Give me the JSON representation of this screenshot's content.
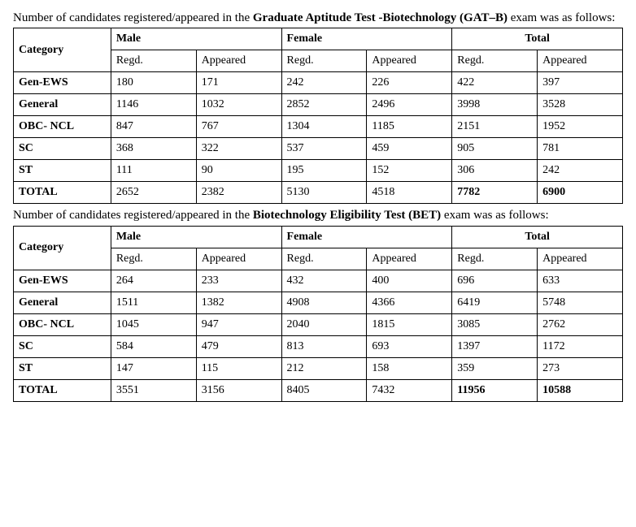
{
  "gatb": {
    "intro_prefix": "Number of candidates registered/appeared in the ",
    "intro_bold": "Graduate Aptitude Test -Biotechnology (GAT–B)",
    "intro_suffix": " exam was as follows:",
    "headers": {
      "category": "Category",
      "male": "Male",
      "female": "Female",
      "total": "Total",
      "regd": "Regd.",
      "appeared": "Appeared"
    },
    "rows": [
      {
        "label": "Gen-EWS",
        "mr": "180",
        "ma": "171",
        "fr": "242",
        "fa": "226",
        "tr": "422",
        "ta": "397"
      },
      {
        "label": "General",
        "mr": "1146",
        "ma": "1032",
        "fr": "2852",
        "fa": "2496",
        "tr": "3998",
        "ta": "3528"
      },
      {
        "label": "OBC- NCL",
        "mr": "847",
        "ma": "767",
        "fr": "1304",
        "fa": "1185",
        "tr": "2151",
        "ta": "1952"
      },
      {
        "label": "SC",
        "mr": "368",
        "ma": "322",
        "fr": "537",
        "fa": "459",
        "tr": "905",
        "ta": "781"
      },
      {
        "label": "ST",
        "mr": "111",
        "ma": "90",
        "fr": "195",
        "fa": "152",
        "tr": "306",
        "ta": "242"
      },
      {
        "label": "TOTAL",
        "mr": "2652",
        "ma": "2382",
        "fr": "5130",
        "fa": "4518",
        "tr": "7782",
        "ta": "6900",
        "bold_totals": true
      }
    ]
  },
  "bet": {
    "intro_prefix": "Number of candidates registered/appeared in the ",
    "intro_bold": "Biotechnology Eligibility Test (BET)",
    "intro_suffix": " exam was as follows:",
    "headers": {
      "category": "Category",
      "male": "Male",
      "female": "Female",
      "total": "Total",
      "regd": "Regd.",
      "appeared": "Appeared"
    },
    "rows": [
      {
        "label": "Gen-EWS",
        "mr": "264",
        "ma": "233",
        "fr": "432",
        "fa": "400",
        "tr": "696",
        "ta": "633"
      },
      {
        "label": "General",
        "mr": "1511",
        "ma": "1382",
        "fr": "4908",
        "fa": "4366",
        "tr": "6419",
        "ta": "5748"
      },
      {
        "label": "OBC- NCL",
        "mr": "1045",
        "ma": "947",
        "fr": "2040",
        "fa": "1815",
        "tr": "3085",
        "ta": "2762"
      },
      {
        "label": "SC",
        "mr": "584",
        "ma": "479",
        "fr": "813",
        "fa": "693",
        "tr": "1397",
        "ta": "1172"
      },
      {
        "label": "ST",
        "mr": "147",
        "ma": "115",
        "fr": "212",
        "fa": "158",
        "tr": "359",
        "ta": "273"
      },
      {
        "label": "TOTAL",
        "mr": "3551",
        "ma": "3156",
        "fr": "8405",
        "fa": "7432",
        "tr": "11956",
        "ta": "10588",
        "bold_totals": true
      }
    ]
  }
}
